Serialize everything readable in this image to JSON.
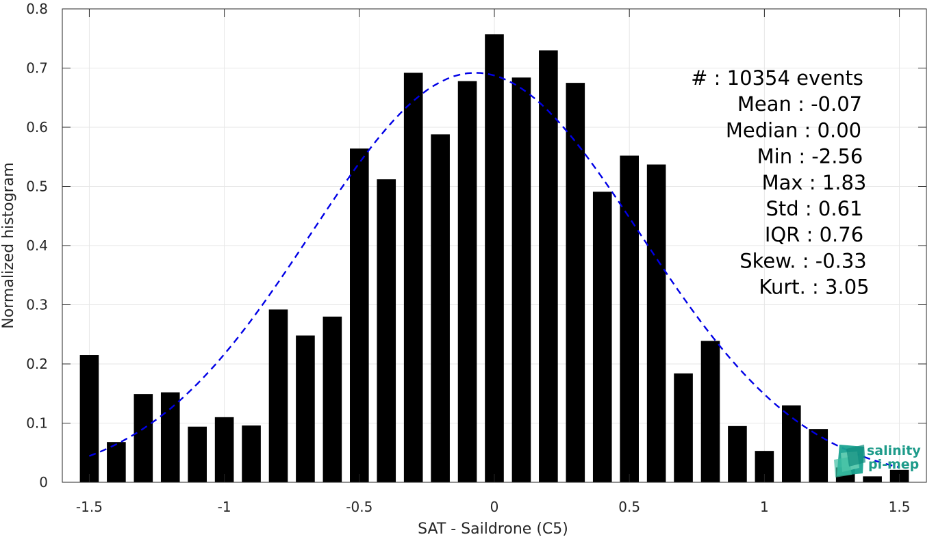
{
  "chart_data": {
    "type": "bar",
    "xlabel": "SAT - Saildrone (C5)",
    "ylabel": "Normalized histogram",
    "xlim": [
      -1.6,
      1.6
    ],
    "ylim": [
      0,
      0.8
    ],
    "xticks": [
      -1.5,
      -1,
      -0.5,
      0,
      0.5,
      1,
      1.5
    ],
    "xtick_labels": [
      "-1.5",
      "-1",
      "-0.5",
      "0",
      "0.5",
      "1",
      "1.5"
    ],
    "yticks": [
      0,
      0.1,
      0.2,
      0.3,
      0.4,
      0.5,
      0.6,
      0.7,
      0.8
    ],
    "ytick_labels": [
      "0",
      "0.1",
      "0.2",
      "0.3",
      "0.4",
      "0.5",
      "0.6",
      "0.7",
      "0.8"
    ],
    "grid": true,
    "bar_width": 0.07,
    "bars": {
      "x": [
        -1.5,
        -1.4,
        -1.3,
        -1.2,
        -1.1,
        -1.0,
        -0.9,
        -0.8,
        -0.7,
        -0.6,
        -0.5,
        -0.4,
        -0.3,
        -0.2,
        -0.1,
        0.0,
        0.1,
        0.2,
        0.3,
        0.4,
        0.5,
        0.6,
        0.7,
        0.8,
        0.9,
        1.0,
        1.1,
        1.2,
        1.3,
        1.4,
        1.5
      ],
      "values": [
        0.215,
        0.068,
        0.149,
        0.152,
        0.094,
        0.11,
        0.096,
        0.292,
        0.248,
        0.28,
        0.564,
        0.512,
        0.692,
        0.588,
        0.678,
        0.757,
        0.684,
        0.73,
        0.675,
        0.491,
        0.552,
        0.537,
        0.184,
        0.239,
        0.095,
        0.053,
        0.13,
        0.09,
        0.025,
        0.01,
        0.021
      ],
      "color": "#000000"
    },
    "fit": {
      "style": "dashed",
      "color": "#0000e6",
      "mean": -0.07,
      "std": 0.61,
      "peak": 0.692,
      "x_range": [
        -1.5,
        1.5
      ]
    },
    "stats": [
      {
        "label": "#  :",
        "value": "10354 events"
      },
      {
        "label": "Mean :",
        "value": "-0.07"
      },
      {
        "label": "Median :",
        "value": "0.00"
      },
      {
        "label": "Min :",
        "value": "-2.56"
      },
      {
        "label": "Max :",
        "value": "1.83"
      },
      {
        "label": "Std :",
        "value": "0.61"
      },
      {
        "label": "IQR :",
        "value": "0.76"
      },
      {
        "label": "Skew. :",
        "value": "-0.33"
      },
      {
        "label": "Kurt. :",
        "value": "3.05"
      }
    ]
  },
  "logo": {
    "line1": "salinity",
    "line2": "pi-mep",
    "color": "#1e9b8a"
  }
}
